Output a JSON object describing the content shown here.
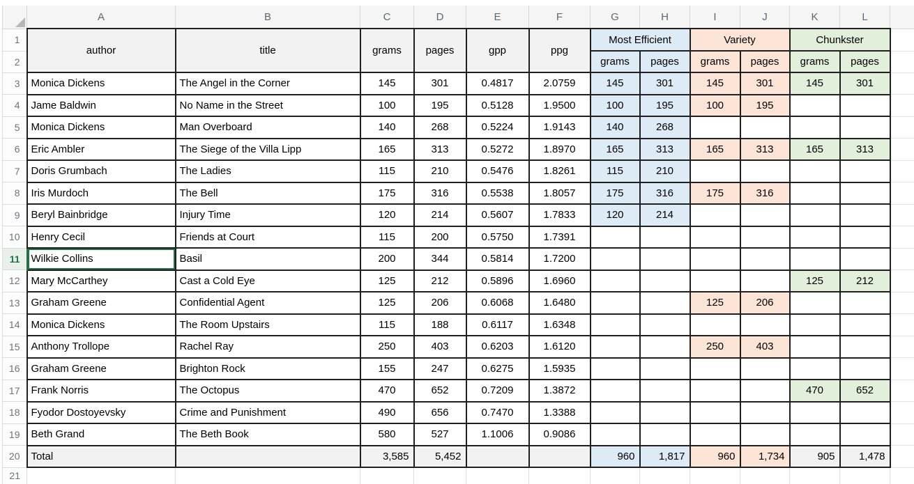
{
  "sheet": {
    "column_letters": [
      "A",
      "B",
      "C",
      "D",
      "E",
      "F",
      "G",
      "H",
      "I",
      "J",
      "K",
      "L"
    ],
    "header": {
      "row1_number": "1",
      "row2_number": "2",
      "author": "author",
      "title": "title",
      "grams": "grams",
      "pages": "pages",
      "gpp": "gpp",
      "ppg": "ppg",
      "groups": [
        {
          "label": "Most Efficient",
          "sub_grams": "grams",
          "sub_pages": "pages",
          "fill": "#DDEBF7"
        },
        {
          "label": "Variety",
          "sub_grams": "grams",
          "sub_pages": "pages",
          "fill": "#FCE4D6"
        },
        {
          "label": "Chunkster",
          "sub_grams": "grams",
          "sub_pages": "pages",
          "fill": "#E2EFDA"
        }
      ]
    },
    "rows": [
      {
        "row_number": "3",
        "author": "Monica Dickens",
        "title": "The Angel in the Corner",
        "grams": "145",
        "pages": "301",
        "gpp": "0.4817",
        "ppg": "2.0759",
        "me_grams": "145",
        "me_pages": "301",
        "v_grams": "145",
        "v_pages": "301",
        "c_grams": "145",
        "c_pages": "301"
      },
      {
        "row_number": "4",
        "author": "Jame Baldwin",
        "title": "No Name in the Street",
        "grams": "100",
        "pages": "195",
        "gpp": "0.5128",
        "ppg": "1.9500",
        "me_grams": "100",
        "me_pages": "195",
        "v_grams": "100",
        "v_pages": "195",
        "c_grams": "",
        "c_pages": ""
      },
      {
        "row_number": "5",
        "author": "Monica Dickens",
        "title": "Man Overboard",
        "grams": "140",
        "pages": "268",
        "gpp": "0.5224",
        "ppg": "1.9143",
        "me_grams": "140",
        "me_pages": "268",
        "v_grams": "",
        "v_pages": "",
        "c_grams": "",
        "c_pages": ""
      },
      {
        "row_number": "6",
        "author": "Eric Ambler",
        "title": "The Siege of the Villa Lipp",
        "grams": "165",
        "pages": "313",
        "gpp": "0.5272",
        "ppg": "1.8970",
        "me_grams": "165",
        "me_pages": "313",
        "v_grams": "165",
        "v_pages": "313",
        "c_grams": "165",
        "c_pages": "313"
      },
      {
        "row_number": "7",
        "author": "Doris Grumbach",
        "title": "The Ladies",
        "grams": "115",
        "pages": "210",
        "gpp": "0.5476",
        "ppg": "1.8261",
        "me_grams": "115",
        "me_pages": "210",
        "v_grams": "",
        "v_pages": "",
        "c_grams": "",
        "c_pages": ""
      },
      {
        "row_number": "8",
        "author": "Iris Murdoch",
        "title": "The Bell",
        "grams": "175",
        "pages": "316",
        "gpp": "0.5538",
        "ppg": "1.8057",
        "me_grams": "175",
        "me_pages": "316",
        "v_grams": "175",
        "v_pages": "316",
        "c_grams": "",
        "c_pages": ""
      },
      {
        "row_number": "9",
        "author": "Beryl Bainbridge",
        "title": "Injury Time",
        "grams": "120",
        "pages": "214",
        "gpp": "0.5607",
        "ppg": "1.7833",
        "me_grams": "120",
        "me_pages": "214",
        "v_grams": "",
        "v_pages": "",
        "c_grams": "",
        "c_pages": ""
      },
      {
        "row_number": "10",
        "author": "Henry Cecil",
        "title": "Friends at Court",
        "grams": "115",
        "pages": "200",
        "gpp": "0.5750",
        "ppg": "1.7391",
        "me_grams": "",
        "me_pages": "",
        "v_grams": "",
        "v_pages": "",
        "c_grams": "",
        "c_pages": ""
      },
      {
        "row_number": "11",
        "author": "Wilkie Collins",
        "title": "Basil",
        "grams": "200",
        "pages": "344",
        "gpp": "0.5814",
        "ppg": "1.7200",
        "me_grams": "",
        "me_pages": "",
        "v_grams": "",
        "v_pages": "",
        "c_grams": "",
        "c_pages": ""
      },
      {
        "row_number": "12",
        "author": "Mary McCarthey",
        "title": "Cast a Cold Eye",
        "grams": "125",
        "pages": "212",
        "gpp": "0.5896",
        "ppg": "1.6960",
        "me_grams": "",
        "me_pages": "",
        "v_grams": "",
        "v_pages": "",
        "c_grams": "125",
        "c_pages": "212"
      },
      {
        "row_number": "13",
        "author": "Graham Greene",
        "title": "Confidential Agent",
        "grams": "125",
        "pages": "206",
        "gpp": "0.6068",
        "ppg": "1.6480",
        "me_grams": "",
        "me_pages": "",
        "v_grams": "125",
        "v_pages": "206",
        "c_grams": "",
        "c_pages": ""
      },
      {
        "row_number": "14",
        "author": "Monica Dickens",
        "title": "The Room Upstairs",
        "grams": "115",
        "pages": "188",
        "gpp": "0.6117",
        "ppg": "1.6348",
        "me_grams": "",
        "me_pages": "",
        "v_grams": "",
        "v_pages": "",
        "c_grams": "",
        "c_pages": ""
      },
      {
        "row_number": "15",
        "author": "Anthony Trollope",
        "title": "Rachel Ray",
        "grams": "250",
        "pages": "403",
        "gpp": "0.6203",
        "ppg": "1.6120",
        "me_grams": "",
        "me_pages": "",
        "v_grams": "250",
        "v_pages": "403",
        "c_grams": "",
        "c_pages": ""
      },
      {
        "row_number": "16",
        "author": "Graham Greene",
        "title": "Brighton Rock",
        "grams": "155",
        "pages": "247",
        "gpp": "0.6275",
        "ppg": "1.5935",
        "me_grams": "",
        "me_pages": "",
        "v_grams": "",
        "v_pages": "",
        "c_grams": "",
        "c_pages": ""
      },
      {
        "row_number": "17",
        "author": "Frank Norris",
        "title": "The Octopus",
        "grams": "470",
        "pages": "652",
        "gpp": "0.7209",
        "ppg": "1.3872",
        "me_grams": "",
        "me_pages": "",
        "v_grams": "",
        "v_pages": "",
        "c_grams": "470",
        "c_pages": "652"
      },
      {
        "row_number": "18",
        "author": "Fyodor Dostoyevsky",
        "title": "Crime and Punishment",
        "grams": "490",
        "pages": "656",
        "gpp": "0.7470",
        "ppg": "1.3388",
        "me_grams": "",
        "me_pages": "",
        "v_grams": "",
        "v_pages": "",
        "c_grams": "",
        "c_pages": ""
      },
      {
        "row_number": "19",
        "author": "Beth Grand",
        "title": "The Beth Book",
        "grams": "580",
        "pages": "527",
        "gpp": "1.1006",
        "ppg": "0.9086",
        "me_grams": "",
        "me_pages": "",
        "v_grams": "",
        "v_pages": "",
        "c_grams": "",
        "c_pages": ""
      }
    ],
    "total": {
      "row_number": "20",
      "label": "Total",
      "grams": "3,585",
      "pages": "5,452",
      "me_grams": "960",
      "me_pages": "1,817",
      "v_grams": "960",
      "v_pages": "1,734",
      "c_grams": "905",
      "c_pages": "1,478"
    },
    "empty_row_number": "21",
    "selection": {
      "active_cell": "A11",
      "active_row_number": "11"
    },
    "colors": {
      "most_efficient_fill": "#DDEBF7",
      "variety_fill": "#FCE4D6",
      "chunkster_fill": "#E2EFDA",
      "header_fill": "#F2F2F2",
      "cell_border": "#1F1F1F",
      "selection_green": "#217346"
    }
  }
}
